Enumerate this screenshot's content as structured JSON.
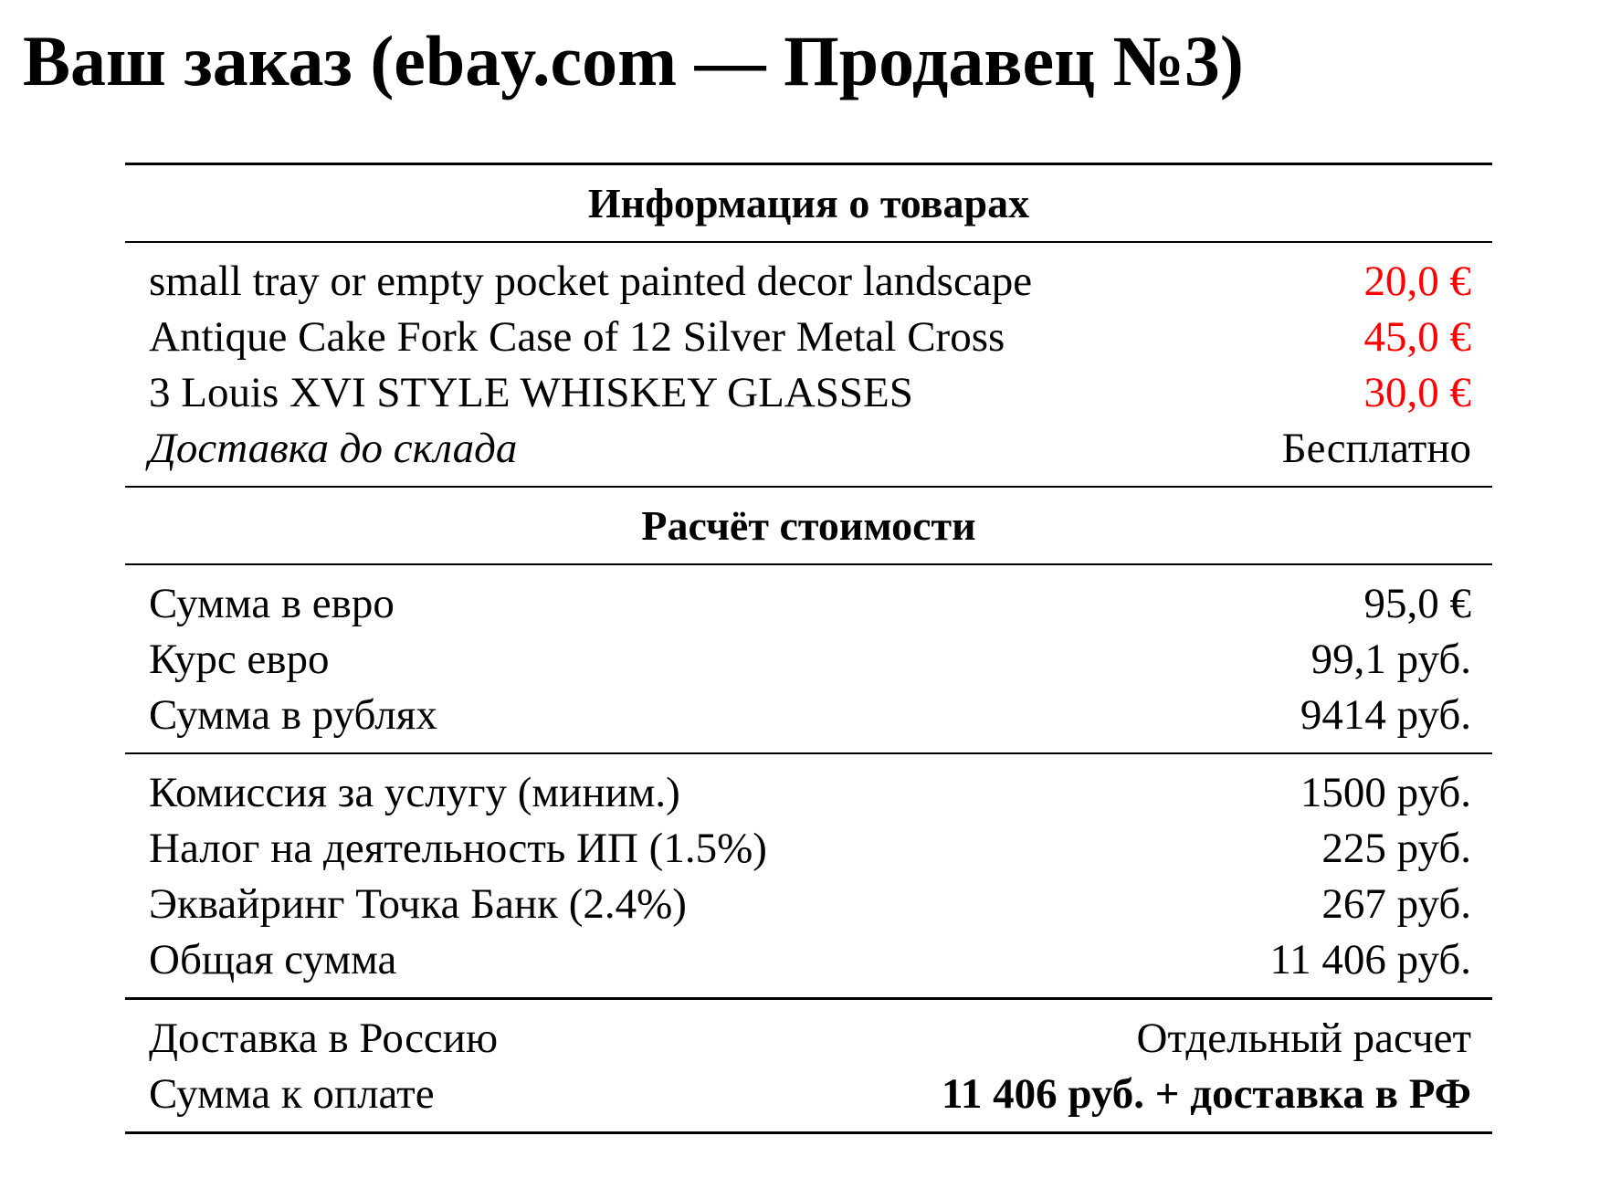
{
  "title": "Ваш заказ (ebay.com — Продавец №3)",
  "colors": {
    "price": "#ff0000",
    "text": "#000000"
  },
  "goods": {
    "header": "Информация о товарах",
    "items": [
      {
        "name": "small tray or empty pocket painted decor landscape",
        "price": "20,0 €"
      },
      {
        "name": "Antique Cake Fork Case of 12 Silver Metal Cross",
        "price": "45,0 €"
      },
      {
        "name": "3 Louis XVI STYLE WHISKEY GLASSES",
        "price": "30,0 €"
      }
    ],
    "warehouse_delivery": {
      "label": "Доставка до склада",
      "value": "Бесплатно"
    }
  },
  "calc": {
    "header": "Расчёт стоимости",
    "conversion": [
      {
        "label": "Сумма в евро",
        "value": "95,0 €"
      },
      {
        "label": "Курс евро",
        "value": "99,1 руб."
      },
      {
        "label": "Сумма в рублях",
        "value": "9414 руб."
      }
    ],
    "fees": [
      {
        "label": "Комиссия за услугу (миним.)",
        "value": "1500 руб."
      },
      {
        "label": "Налог на деятельность ИП (1.5%)",
        "value": "225 руб."
      },
      {
        "label": "Эквайринг Точка Банк (2.4%)",
        "value": "267 руб."
      },
      {
        "label": "Общая сумма",
        "value": "11 406 руб."
      }
    ],
    "final": [
      {
        "label": "Доставка в Россию",
        "value": "Отдельный расчет"
      },
      {
        "label": "Сумма к оплате",
        "value": "11 406 руб. + доставка в РФ"
      }
    ]
  }
}
